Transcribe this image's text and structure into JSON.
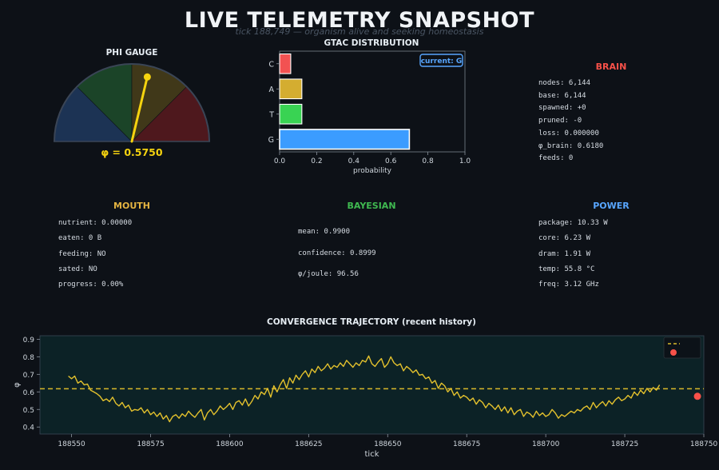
{
  "header": {
    "title": "LIVE TELEMETRY SNAPSHOT",
    "subtitle": "tick 188,749 — organism alive and seeking homeostasis"
  },
  "gauge": {
    "title": "PHI GAUGE",
    "value": 0.575,
    "label": "φ = 0.5750",
    "zones": [
      "#1f3a5f",
      "#1e4d2b",
      "#4a3f1a",
      "#5a1a1f"
    ],
    "needle_color": "#f5d30f"
  },
  "gtac": {
    "title": "GTAC DISTRIBUTION",
    "current_badge": "current: G",
    "xlabel": "probability"
  },
  "brain": {
    "title": "BRAIN",
    "color": "#f85149",
    "lines": [
      "nodes: 6,144",
      "base: 6,144",
      "spawned: +0",
      "pruned: -0",
      "loss: 0.000000",
      "φ_brain: 0.6180",
      "feeds: 0"
    ]
  },
  "mouth": {
    "title": "MOUTH",
    "color": "#e3b341",
    "lines": [
      "nutrient: 0.00000",
      "eaten: 0 B",
      "feeding: NO",
      "sated: NO",
      "progress: 0.00%"
    ]
  },
  "bayesian": {
    "title": "BAYESIAN",
    "color": "#3fb950",
    "lines": [
      "mean: 0.9900",
      "confidence: 0.8999",
      "φ/joule: 96.56"
    ]
  },
  "power": {
    "title": "POWER",
    "color": "#58a6ff",
    "lines": [
      "package: 10.33 W",
      "core: 6.23 W",
      "dram: 1.91 W",
      "temp: 55.8 °C",
      "freq: 3.12 GHz"
    ]
  },
  "chart_data": [
    {
      "type": "bar",
      "orientation": "horizontal",
      "title": "GTAC DISTRIBUTION",
      "categories": [
        "G",
        "T",
        "A",
        "C"
      ],
      "values": [
        0.7,
        0.12,
        0.12,
        0.06
      ],
      "colors": [
        "#3b9cff",
        "#39d353",
        "#d4ad30",
        "#f25252"
      ],
      "xlabel": "probability",
      "xlim": [
        0,
        1
      ],
      "xticks": [
        "0.0",
        "0.2",
        "0.4",
        "0.6",
        "0.8",
        "1.0"
      ],
      "highlight": "G"
    },
    {
      "type": "line",
      "title": "CONVERGENCE TRAJECTORY (recent history)",
      "xlabel": "tick",
      "ylabel": "φ",
      "xlim": [
        188540,
        188750
      ],
      "ylim": [
        0.36,
        0.92
      ],
      "xticks": [
        188550,
        188575,
        188600,
        188625,
        188650,
        188675,
        188700,
        188725,
        188750
      ],
      "yticks": [
        0.4,
        0.5,
        0.6,
        0.7,
        0.8,
        0.9
      ],
      "x_start": 188549,
      "series": [
        {
          "color": "#e3c12d",
          "values": [
            0.69,
            0.675,
            0.69,
            0.65,
            0.662,
            0.64,
            0.645,
            0.61,
            0.6,
            0.59,
            0.575,
            0.55,
            0.56,
            0.545,
            0.57,
            0.535,
            0.52,
            0.54,
            0.51,
            0.525,
            0.49,
            0.5,
            0.495,
            0.51,
            0.48,
            0.5,
            0.47,
            0.485,
            0.46,
            0.48,
            0.445,
            0.465,
            0.43,
            0.46,
            0.47,
            0.45,
            0.475,
            0.46,
            0.49,
            0.47,
            0.455,
            0.48,
            0.5,
            0.44,
            0.48,
            0.5,
            0.47,
            0.49,
            0.52,
            0.5,
            0.515,
            0.535,
            0.5,
            0.54,
            0.55,
            0.525,
            0.56,
            0.52,
            0.545,
            0.58,
            0.56,
            0.6,
            0.585,
            0.62,
            0.57,
            0.635,
            0.6,
            0.64,
            0.67,
            0.62,
            0.68,
            0.65,
            0.695,
            0.67,
            0.7,
            0.72,
            0.685,
            0.73,
            0.71,
            0.745,
            0.72,
            0.735,
            0.76,
            0.73,
            0.75,
            0.74,
            0.765,
            0.745,
            0.78,
            0.76,
            0.74,
            0.765,
            0.75,
            0.78,
            0.77,
            0.805,
            0.76,
            0.745,
            0.77,
            0.79,
            0.74,
            0.76,
            0.8,
            0.765,
            0.75,
            0.76,
            0.72,
            0.745,
            0.73,
            0.71,
            0.725,
            0.695,
            0.7,
            0.675,
            0.685,
            0.65,
            0.665,
            0.62,
            0.65,
            0.635,
            0.6,
            0.62,
            0.58,
            0.6,
            0.565,
            0.58,
            0.57,
            0.55,
            0.565,
            0.53,
            0.555,
            0.54,
            0.51,
            0.535,
            0.52,
            0.5,
            0.525,
            0.49,
            0.515,
            0.48,
            0.51,
            0.47,
            0.49,
            0.5,
            0.46,
            0.485,
            0.475,
            0.455,
            0.49,
            0.465,
            0.48,
            0.46,
            0.47,
            0.5,
            0.48,
            0.45,
            0.47,
            0.46,
            0.475,
            0.49,
            0.48,
            0.5,
            0.49,
            0.51,
            0.52,
            0.5,
            0.54,
            0.51,
            0.53,
            0.545,
            0.52,
            0.55,
            0.53,
            0.555,
            0.57,
            0.55,
            0.56,
            0.58,
            0.565,
            0.6,
            0.58,
            0.61,
            0.59,
            0.62,
            0.6,
            0.625,
            0.61,
            0.64
          ]
        }
      ],
      "reference_line": {
        "y": 0.618,
        "color": "#d9b92a"
      },
      "current_point": {
        "x": 188749,
        "y": 0.575,
        "color": "#f85149"
      }
    }
  ]
}
